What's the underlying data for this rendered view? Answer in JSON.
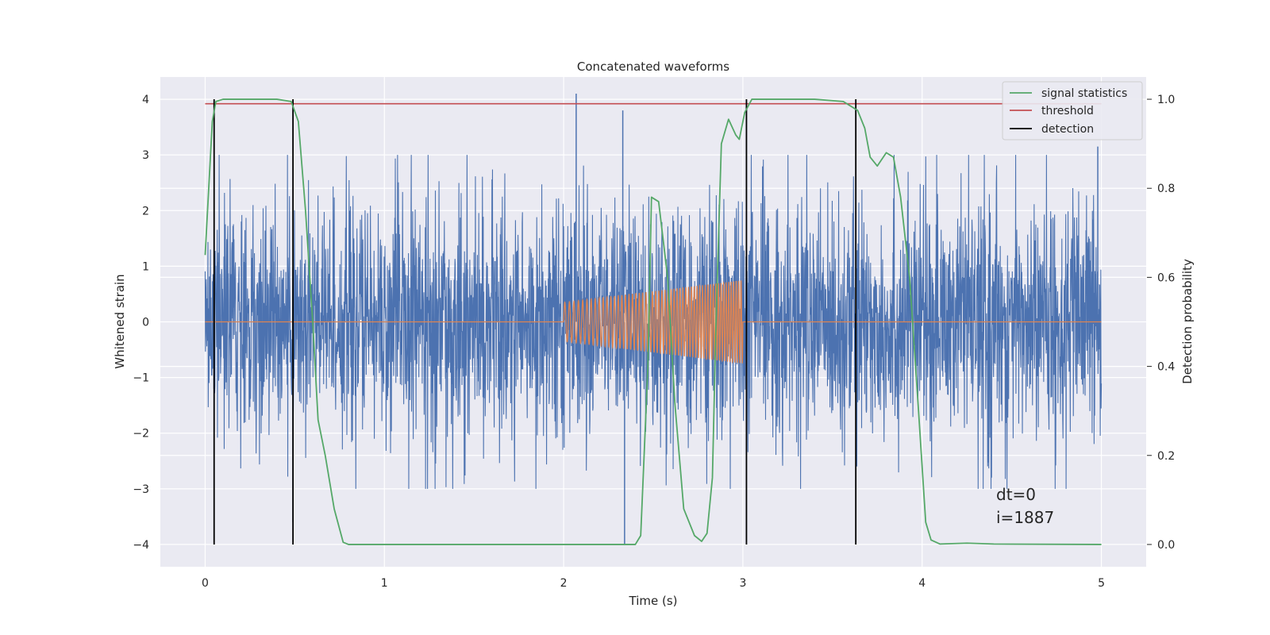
{
  "chart_data": {
    "type": "line",
    "title": "Concatenated waveforms",
    "xlabel": "Time (s)",
    "ylabel_left": "Whitened strain",
    "ylabel_right": "Detection probability",
    "xlim": [
      -0.25,
      5.25
    ],
    "ylim_left": [
      -4.4,
      4.4
    ],
    "ylim_right": [
      -0.05,
      1.05
    ],
    "xticks": [
      0,
      1,
      2,
      3,
      4,
      5
    ],
    "xtick_labels": [
      "0",
      "1",
      "2",
      "3",
      "4",
      "5"
    ],
    "yticks_left": [
      4,
      3,
      2,
      1,
      0,
      -1,
      -2,
      -3,
      -4
    ],
    "ytick_labels_left": [
      "4",
      "3",
      "2",
      "1",
      "0",
      "−1",
      "−2",
      "−3",
      "−4"
    ],
    "yticks_right": [
      1.0,
      0.8,
      0.6,
      0.4,
      0.2,
      0.0
    ],
    "ytick_labels_right": [
      "1.0",
      "0.8",
      "0.6",
      "0.4",
      "0.2",
      "0.0"
    ],
    "grid": true,
    "legend_position": "top-right",
    "legend": [
      {
        "label": "signal statistics",
        "color": "#55a868"
      },
      {
        "label": "threshold",
        "color": "#c44e52"
      },
      {
        "label": "detection",
        "color": "#000000"
      }
    ],
    "annotation": {
      "line1": "dt=0",
      "line2": "i=1887"
    },
    "strain": {
      "color": "#4c72b0",
      "x_range": [
        0,
        5
      ],
      "notable_spikes": [
        {
          "x": 2.07,
          "y": 4.1
        },
        {
          "x": 2.33,
          "y": 3.8
        },
        {
          "x": 2.34,
          "y": -4.0
        },
        {
          "x": 4.98,
          "y": 3.15
        },
        {
          "x": 0.49,
          "y": -3.6
        }
      ]
    },
    "injected_signal": {
      "color": "#dd8452",
      "x_range": [
        2.0,
        3.0
      ],
      "amplitude_start": 0.35,
      "amplitude_end": 0.75
    },
    "signal_statistics": {
      "axis": "right",
      "points": [
        [
          0.0,
          0.65
        ],
        [
          0.02,
          0.8
        ],
        [
          0.04,
          0.95
        ],
        [
          0.06,
          0.995
        ],
        [
          0.1,
          1.0
        ],
        [
          0.4,
          1.0
        ],
        [
          0.48,
          0.995
        ],
        [
          0.52,
          0.95
        ],
        [
          0.56,
          0.75
        ],
        [
          0.6,
          0.5
        ],
        [
          0.63,
          0.28
        ],
        [
          0.67,
          0.2
        ],
        [
          0.72,
          0.08
        ],
        [
          0.77,
          0.005
        ],
        [
          0.8,
          0.0
        ],
        [
          2.4,
          0.0
        ],
        [
          2.43,
          0.02
        ],
        [
          2.47,
          0.4
        ],
        [
          2.49,
          0.78
        ],
        [
          2.53,
          0.77
        ],
        [
          2.58,
          0.6
        ],
        [
          2.62,
          0.32
        ],
        [
          2.67,
          0.08
        ],
        [
          2.73,
          0.02
        ],
        [
          2.77,
          0.007
        ],
        [
          2.8,
          0.025
        ],
        [
          2.83,
          0.15
        ],
        [
          2.85,
          0.5
        ],
        [
          2.88,
          0.9
        ],
        [
          2.92,
          0.955
        ],
        [
          2.96,
          0.92
        ],
        [
          2.98,
          0.91
        ],
        [
          3.01,
          0.97
        ],
        [
          3.05,
          1.0
        ],
        [
          3.4,
          1.0
        ],
        [
          3.56,
          0.995
        ],
        [
          3.64,
          0.975
        ],
        [
          3.68,
          0.935
        ],
        [
          3.71,
          0.87
        ],
        [
          3.75,
          0.85
        ],
        [
          3.8,
          0.88
        ],
        [
          3.84,
          0.87
        ],
        [
          3.88,
          0.78
        ],
        [
          3.93,
          0.6
        ],
        [
          3.98,
          0.3
        ],
        [
          4.02,
          0.05
        ],
        [
          4.05,
          0.01
        ],
        [
          4.1,
          0.001
        ],
        [
          4.25,
          0.003
        ],
        [
          4.4,
          0.001
        ],
        [
          5.0,
          0.0
        ]
      ]
    },
    "threshold": {
      "axis": "right",
      "value": 0.99,
      "x_range": [
        0,
        5
      ]
    },
    "detections": [
      0.05,
      0.49,
      3.02,
      3.63
    ]
  }
}
